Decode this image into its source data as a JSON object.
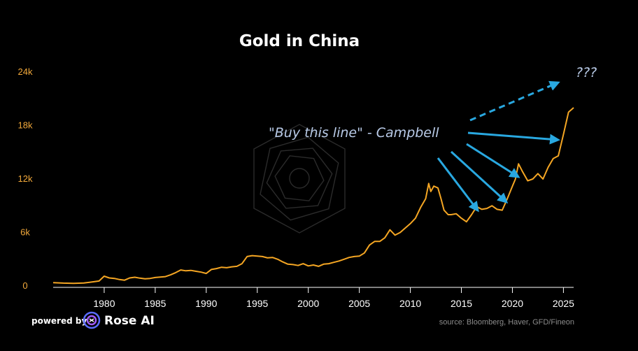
{
  "chart_data": {
    "type": "line",
    "title": "Gold in China",
    "xlabel": "",
    "ylabel": "",
    "xlim": [
      1975,
      2026
    ],
    "ylim": [
      0,
      24000
    ],
    "grid": false,
    "y_ticks": [
      {
        "value": 0,
        "label": "0"
      },
      {
        "value": 6000,
        "label": "6k"
      },
      {
        "value": 12000,
        "label": "12k"
      },
      {
        "value": 18000,
        "label": "18k"
      },
      {
        "value": 24000,
        "label": "24k"
      }
    ],
    "x_ticks": [
      {
        "value": 1980,
        "label": "1980"
      },
      {
        "value": 1985,
        "label": "1985"
      },
      {
        "value": 1990,
        "label": "1990"
      },
      {
        "value": 1995,
        "label": "1995"
      },
      {
        "value": 2000,
        "label": "2000"
      },
      {
        "value": 2005,
        "label": "2005"
      },
      {
        "value": 2010,
        "label": "2010"
      },
      {
        "value": 2015,
        "label": "2015"
      },
      {
        "value": 2020,
        "label": "2020"
      },
      {
        "value": 2025,
        "label": "2025"
      }
    ],
    "series": [
      {
        "color": "#f5a623",
        "points": [
          [
            1975.0,
            380
          ],
          [
            1976.0,
            320
          ],
          [
            1977.0,
            300
          ],
          [
            1978.0,
            330
          ],
          [
            1979.0,
            480
          ],
          [
            1979.5,
            560
          ],
          [
            1980.0,
            1100
          ],
          [
            1980.5,
            900
          ],
          [
            1981.0,
            850
          ],
          [
            1981.5,
            720
          ],
          [
            1982.0,
            650
          ],
          [
            1982.5,
            900
          ],
          [
            1983.0,
            980
          ],
          [
            1983.5,
            880
          ],
          [
            1984.0,
            800
          ],
          [
            1984.5,
            850
          ],
          [
            1985.0,
            950
          ],
          [
            1985.5,
            1000
          ],
          [
            1986.0,
            1050
          ],
          [
            1986.5,
            1250
          ],
          [
            1987.0,
            1500
          ],
          [
            1987.5,
            1800
          ],
          [
            1988.0,
            1700
          ],
          [
            1988.5,
            1750
          ],
          [
            1989.0,
            1650
          ],
          [
            1989.5,
            1550
          ],
          [
            1990.0,
            1400
          ],
          [
            1990.5,
            1850
          ],
          [
            1991.0,
            1950
          ],
          [
            1991.5,
            2100
          ],
          [
            1992.0,
            2050
          ],
          [
            1992.5,
            2150
          ],
          [
            1993.0,
            2200
          ],
          [
            1993.5,
            2500
          ],
          [
            1994.0,
            3300
          ],
          [
            1994.5,
            3400
          ],
          [
            1995.0,
            3350
          ],
          [
            1995.5,
            3300
          ],
          [
            1996.0,
            3150
          ],
          [
            1996.5,
            3200
          ],
          [
            1997.0,
            3000
          ],
          [
            1997.5,
            2700
          ],
          [
            1998.0,
            2450
          ],
          [
            1998.5,
            2400
          ],
          [
            1999.0,
            2300
          ],
          [
            1999.5,
            2500
          ],
          [
            2000.0,
            2250
          ],
          [
            2000.5,
            2350
          ],
          [
            2001.0,
            2200
          ],
          [
            2001.5,
            2450
          ],
          [
            2002.0,
            2500
          ],
          [
            2002.5,
            2650
          ],
          [
            2003.0,
            2800
          ],
          [
            2003.5,
            3000
          ],
          [
            2004.0,
            3200
          ],
          [
            2004.5,
            3300
          ],
          [
            2005.0,
            3350
          ],
          [
            2005.5,
            3700
          ],
          [
            2006.0,
            4600
          ],
          [
            2006.5,
            5000
          ],
          [
            2007.0,
            5000
          ],
          [
            2007.5,
            5400
          ],
          [
            2008.0,
            6300
          ],
          [
            2008.5,
            5700
          ],
          [
            2009.0,
            6000
          ],
          [
            2009.5,
            6500
          ],
          [
            2010.0,
            7000
          ],
          [
            2010.5,
            7600
          ],
          [
            2011.0,
            8800
          ],
          [
            2011.5,
            9800
          ],
          [
            2011.8,
            11500
          ],
          [
            2012.0,
            10600
          ],
          [
            2012.3,
            11200
          ],
          [
            2012.7,
            11000
          ],
          [
            2013.0,
            9800
          ],
          [
            2013.3,
            8500
          ],
          [
            2013.7,
            8000
          ],
          [
            2014.0,
            8000
          ],
          [
            2014.5,
            8100
          ],
          [
            2015.0,
            7600
          ],
          [
            2015.5,
            7200
          ],
          [
            2016.0,
            8000
          ],
          [
            2016.5,
            8900
          ],
          [
            2017.0,
            8600
          ],
          [
            2017.5,
            8700
          ],
          [
            2018.0,
            9000
          ],
          [
            2018.5,
            8600
          ],
          [
            2019.0,
            8500
          ],
          [
            2019.5,
            9800
          ],
          [
            2020.0,
            11200
          ],
          [
            2020.3,
            12000
          ],
          [
            2020.6,
            13700
          ],
          [
            2021.0,
            12800
          ],
          [
            2021.5,
            11800
          ],
          [
            2022.0,
            12000
          ],
          [
            2022.5,
            12600
          ],
          [
            2023.0,
            12000
          ],
          [
            2023.5,
            13300
          ],
          [
            2024.0,
            14300
          ],
          [
            2024.5,
            14600
          ],
          [
            2025.0,
            17000
          ],
          [
            2025.5,
            19500
          ],
          [
            2026.0,
            20000
          ]
        ]
      }
    ],
    "annotations": [
      {
        "text": "\"Buy this line\" - Campbell",
        "color": "#b9cbe8"
      },
      {
        "text": "???",
        "color": "#b9cbe8"
      }
    ]
  },
  "footer": {
    "powered_by": "powered by",
    "brand": "Rose AI",
    "source": "source: Bloomberg, Haver, GFD/Fineon"
  },
  "colors": {
    "background": "#000000",
    "line": "#f5a623",
    "arrow": "#29a8e0",
    "annotation_text": "#b9cbe8"
  },
  "icons": {
    "logo": "rose-ai-logo-icon",
    "watermark": "rose-ai-watermark-icon"
  }
}
